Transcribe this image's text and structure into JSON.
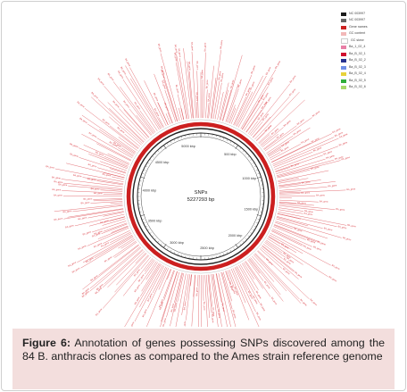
{
  "figure": {
    "center_title": "SNPs",
    "center_subtitle": "5227293 bp",
    "ring_labels": [
      "500 kbp",
      "1000 kbp",
      "1500 kbp",
      "2000 kbp",
      "2500 kbp",
      "3000 kbp",
      "3500 kbp",
      "4000 kbp",
      "4500 kbp",
      "5000 kbp"
    ],
    "gene_label_text": "BA_gene",
    "colors": {
      "annotation_red": "#d9363e",
      "backbone_red": "#cc1f1f",
      "ring_black": "#222222"
    },
    "legend": [
      {
        "label": "NC 003997",
        "color": "#1a1a1a"
      },
      {
        "label": "NC 003997",
        "color": "#666666"
      },
      {
        "label": "Gene names",
        "color": "#cc2222"
      },
      {
        "label": "GC content",
        "color": "#f2b8b8"
      },
      {
        "label": "GC skew",
        "color": "#ffffff"
      },
      {
        "label": "Ba_1_02_4",
        "color": "#e87fa6"
      },
      {
        "label": "Ba_B_02_1",
        "color": "#d10f2f"
      },
      {
        "label": "Ba_B_02_2",
        "color": "#27328f"
      },
      {
        "label": "Ba_B_02_3",
        "color": "#6f8fe8"
      },
      {
        "label": "Ba_B_02_4",
        "color": "#e8d23a"
      },
      {
        "label": "Ba_B_02_5",
        "color": "#2fae3a"
      },
      {
        "label": "Ba_B_02_6",
        "color": "#a6d86a"
      }
    ]
  },
  "caption": {
    "label": "Figure 6:",
    "text": " Annotation of genes possessing SNPs discovered among the 84 B. anthracis clones as compared to the Ames strain reference genome"
  }
}
